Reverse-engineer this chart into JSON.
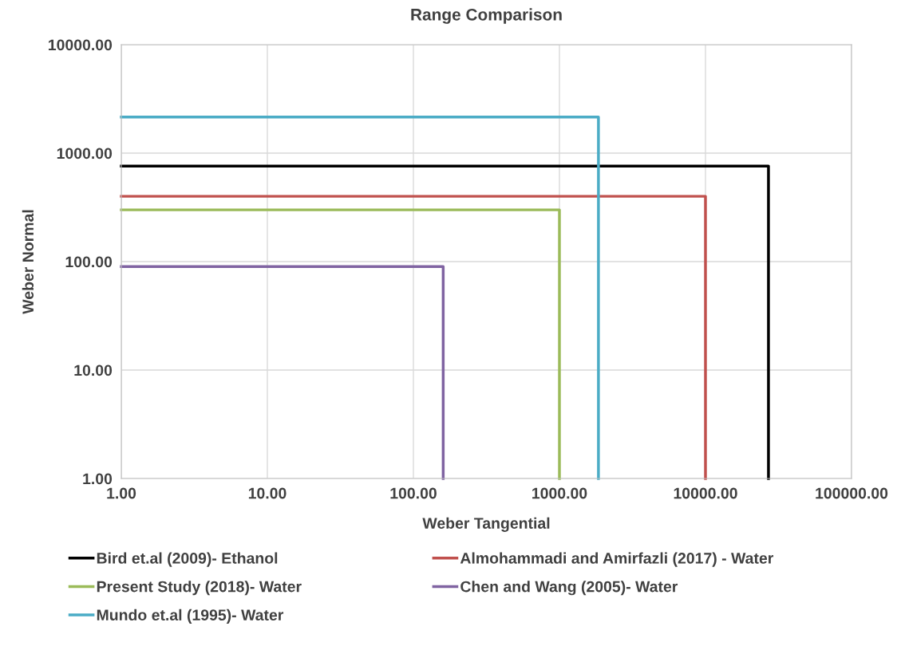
{
  "chart_data": {
    "type": "line",
    "title": "Range Comparison",
    "xlabel": "Weber Tangential",
    "ylabel": "Weber Normal",
    "log": "xy",
    "grid": true,
    "legend": "bottom",
    "marker": "none",
    "line_style": "solid",
    "xlim": [
      1,
      100000
    ],
    "ylim": [
      1,
      10000
    ],
    "xticks": [
      {
        "value": 1,
        "label": "1.00"
      },
      {
        "value": 10,
        "label": "10.00"
      },
      {
        "value": 100,
        "label": "100.00"
      },
      {
        "value": 1000,
        "label": "1000.00"
      },
      {
        "value": 10000,
        "label": "10000.00"
      },
      {
        "value": 100000,
        "label": "100000.00"
      }
    ],
    "yticks": [
      {
        "value": 1,
        "label": "1.00"
      },
      {
        "value": 10,
        "label": "10.00"
      },
      {
        "value": 100,
        "label": "100.00"
      },
      {
        "value": 1000,
        "label": "1000.00"
      },
      {
        "value": 10000,
        "label": "10000.00"
      }
    ],
    "series": [
      {
        "name": "Bird et.al (2009)- Ethanol",
        "color": "#000000",
        "x": [
          1,
          27000,
          27000
        ],
        "values": [
          760,
          760,
          1
        ]
      },
      {
        "name": "Almohammadi and Amirfazli (2017) - Water",
        "color": "#c0504d",
        "x": [
          1,
          10000,
          10000
        ],
        "values": [
          400,
          400,
          1
        ]
      },
      {
        "name": "Present Study (2018)- Water",
        "color": "#9bbb59",
        "x": [
          1,
          1000,
          1000
        ],
        "values": [
          300,
          300,
          1
        ]
      },
      {
        "name": "Chen and Wang (2005)- Water",
        "color": "#8064a2",
        "x": [
          1,
          160,
          160
        ],
        "values": [
          90,
          90,
          1
        ]
      },
      {
        "name": "Mundo et.al (1995)- Water",
        "color": "#4bacc6",
        "x": [
          1,
          1850,
          1850
        ],
        "values": [
          2150,
          2150,
          1
        ]
      }
    ]
  }
}
